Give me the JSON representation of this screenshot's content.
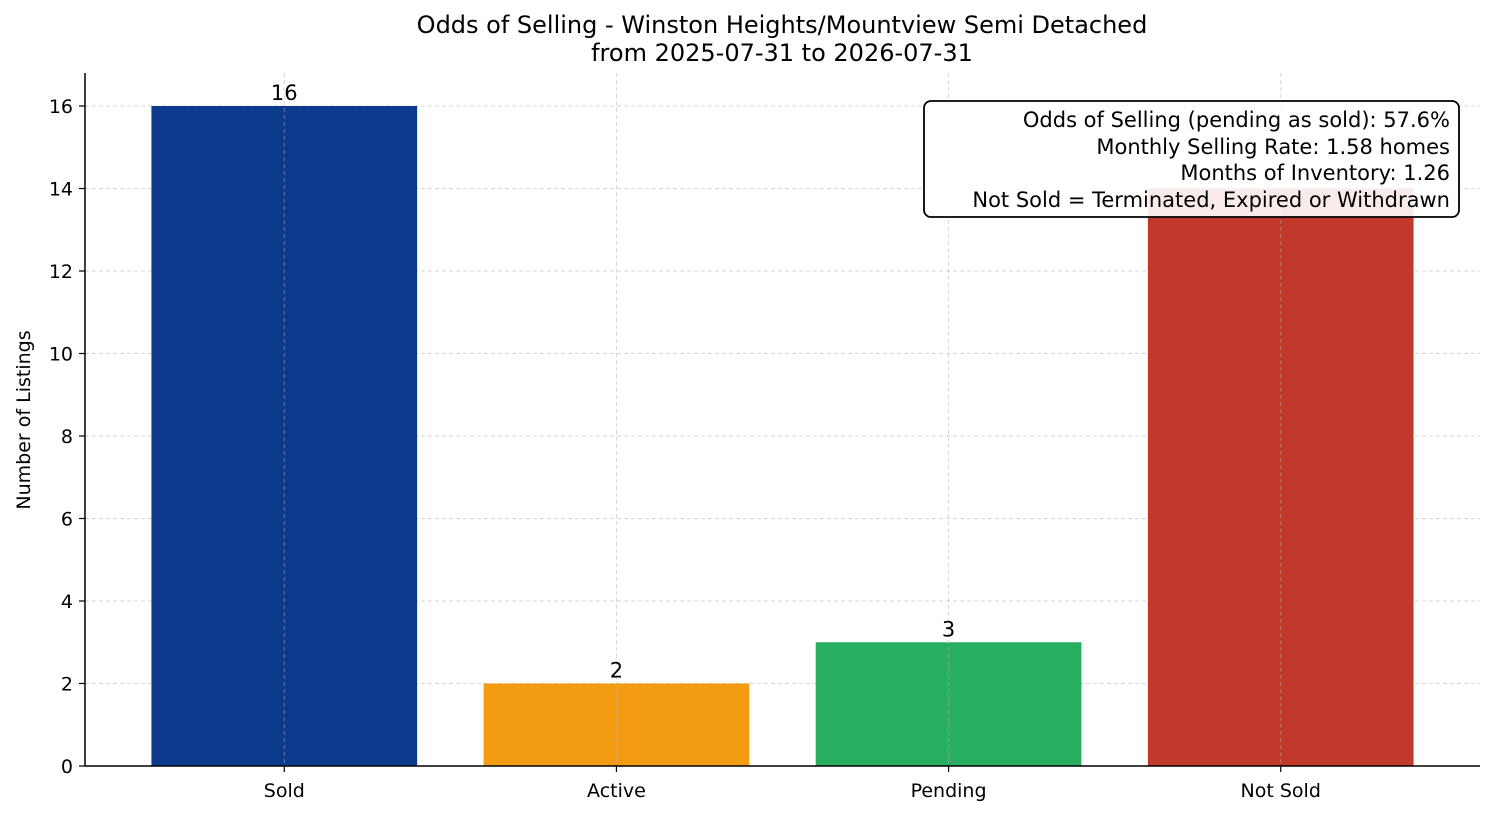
{
  "chart_data": {
    "type": "bar",
    "title": "Odds of Selling - Winston Heights/Mountview Semi Detached",
    "subtitle": "from 2025-07-31 to 2026-07-31",
    "xlabel": "",
    "ylabel": "Number of Listings",
    "categories": [
      "Sold",
      "Active",
      "Pending",
      "Not Sold"
    ],
    "values": [
      16,
      2,
      3,
      14
    ],
    "value_labels": [
      "16",
      "2",
      "3",
      ""
    ],
    "colors": [
      "#0b3a8d",
      "#f39c12",
      "#27ae60",
      "#c0392b"
    ],
    "ylim": [
      0,
      16.8
    ],
    "yticks": [
      0,
      2,
      4,
      6,
      8,
      10,
      12,
      14,
      16
    ],
    "grid": true,
    "annotation": {
      "placement": "top-right",
      "lines": [
        "Odds of Selling (pending as sold): 57.6%",
        "Monthly Selling Rate: 1.58 homes",
        "Months of Inventory: 1.26",
        "Not Sold = Terminated, Expired or Withdrawn"
      ]
    }
  }
}
